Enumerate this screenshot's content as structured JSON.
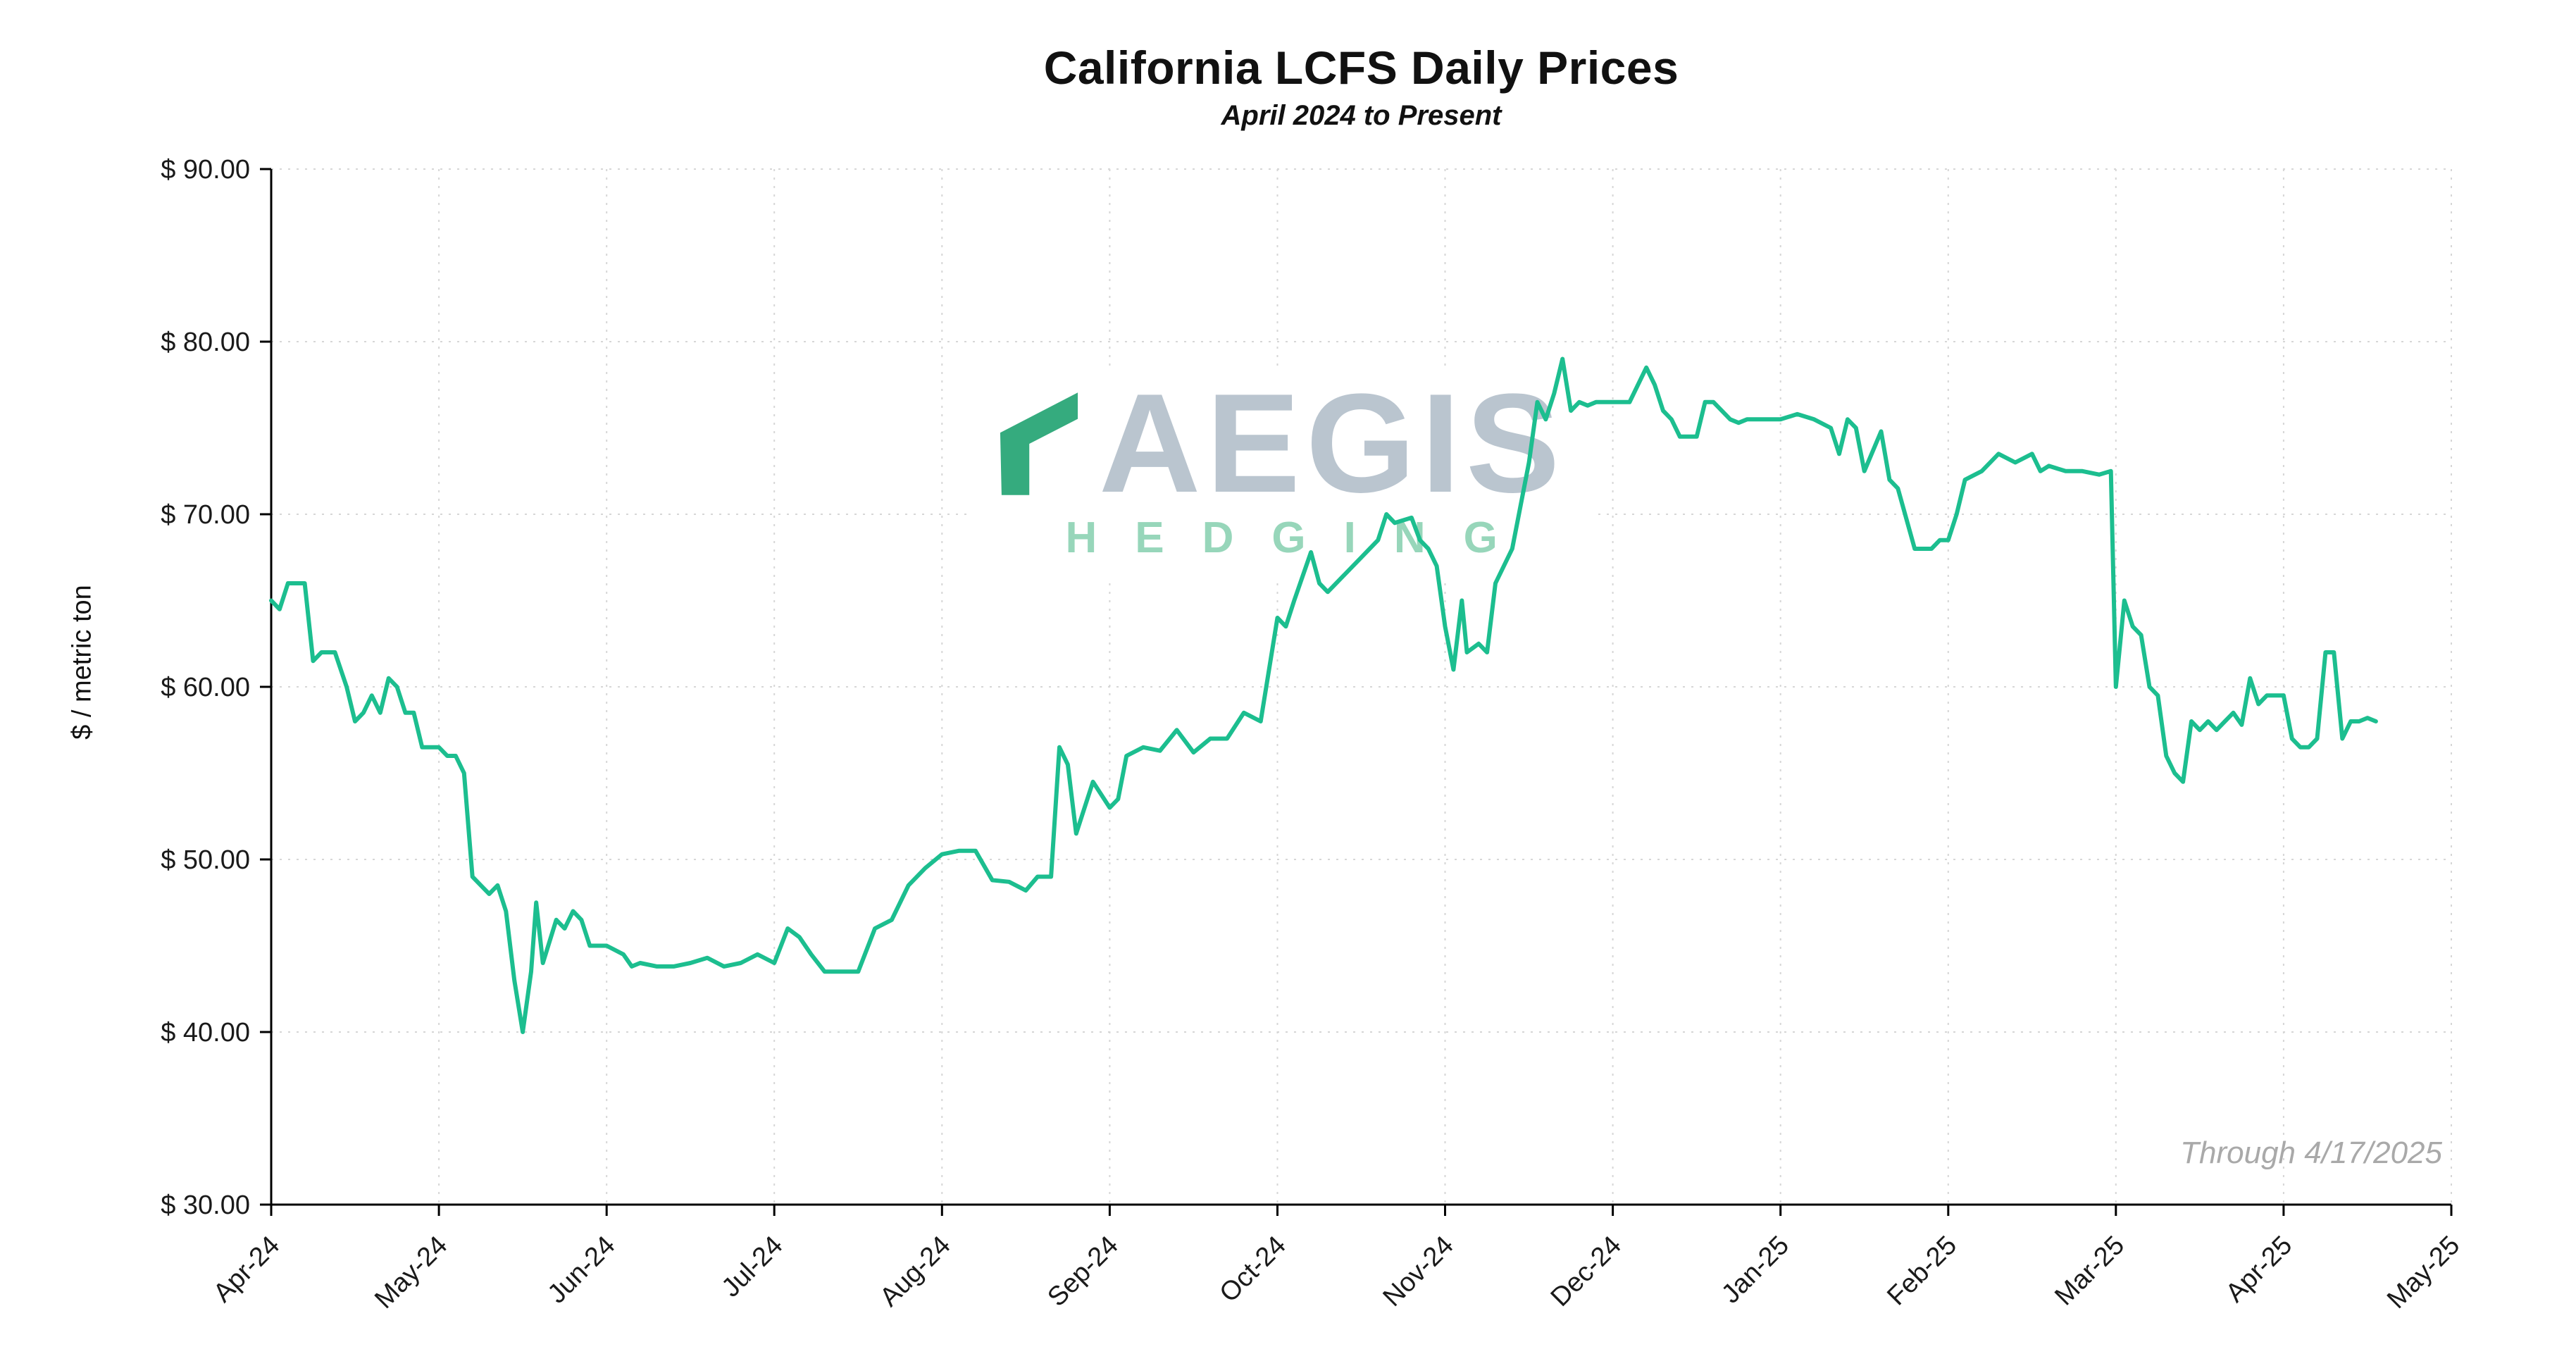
{
  "chart_data": {
    "type": "line",
    "title": "California LCFS Daily Prices",
    "subtitle": "April 2024 to Present",
    "xlabel": "",
    "ylabel": "$ / metric ton",
    "annotation": "Through 4/17/2025",
    "grid": true,
    "legend": "none",
    "line_color": "#1CBE8F",
    "grid_color": "#d6d6d6",
    "annotation_color": "#a9a9a9",
    "ylim": [
      30,
      90
    ],
    "xlim": [
      0,
      13
    ],
    "ytick_values": [
      30,
      40,
      50,
      60,
      70,
      80,
      90
    ],
    "ytick_labels": [
      "$ 30.00",
      "$ 40.00",
      "$ 50.00",
      "$ 60.00",
      "$ 70.00",
      "$ 80.00",
      "$ 90.00"
    ],
    "xtick_labels": [
      "Apr-24",
      "May-24",
      "Jun-24",
      "Jul-24",
      "Aug-24",
      "Sep-24",
      "Oct-24",
      "Nov-24",
      "Dec-24",
      "Jan-25",
      "Feb-25",
      "Mar-25",
      "Apr-25",
      "May-25"
    ],
    "x_units": "months from Apr-2024 tick (0 = Apr-24, 13 = May-25)",
    "series": [
      {
        "name": "California LCFS Daily Price ($/metric ton)",
        "x": [
          0.0,
          0.05,
          0.1,
          0.2,
          0.25,
          0.3,
          0.38,
          0.45,
          0.5,
          0.55,
          0.6,
          0.65,
          0.7,
          0.75,
          0.8,
          0.85,
          0.9,
          0.95,
          1.0,
          1.05,
          1.1,
          1.15,
          1.2,
          1.25,
          1.3,
          1.35,
          1.4,
          1.45,
          1.5,
          1.55,
          1.58,
          1.62,
          1.7,
          1.75,
          1.8,
          1.85,
          1.9,
          1.95,
          2.0,
          2.1,
          2.15,
          2.2,
          2.3,
          2.4,
          2.5,
          2.6,
          2.7,
          2.8,
          2.9,
          3.0,
          3.08,
          3.15,
          3.22,
          3.3,
          3.4,
          3.5,
          3.6,
          3.7,
          3.8,
          3.9,
          4.0,
          4.1,
          4.2,
          4.3,
          4.4,
          4.5,
          4.57,
          4.65,
          4.7,
          4.75,
          4.8,
          4.9,
          5.0,
          5.05,
          5.1,
          5.2,
          5.3,
          5.4,
          5.5,
          5.6,
          5.7,
          5.8,
          5.9,
          6.0,
          6.05,
          6.1,
          6.2,
          6.25,
          6.3,
          6.4,
          6.5,
          6.55,
          6.6,
          6.65,
          6.7,
          6.8,
          6.85,
          6.9,
          6.95,
          7.0,
          7.05,
          7.1,
          7.13,
          7.2,
          7.25,
          7.3,
          7.35,
          7.4,
          7.45,
          7.5,
          7.55,
          7.6,
          7.65,
          7.7,
          7.75,
          7.8,
          7.85,
          7.9,
          7.95,
          8.0,
          8.1,
          8.15,
          8.2,
          8.25,
          8.3,
          8.35,
          8.4,
          8.5,
          8.55,
          8.6,
          8.7,
          8.75,
          8.8,
          8.9,
          9.0,
          9.1,
          9.2,
          9.3,
          9.35,
          9.4,
          9.45,
          9.5,
          9.6,
          9.65,
          9.7,
          9.8,
          9.9,
          9.95,
          10.0,
          10.05,
          10.1,
          10.2,
          10.3,
          10.4,
          10.5,
          10.55,
          10.6,
          10.7,
          10.8,
          10.9,
          10.97,
          11.0,
          11.05,
          11.1,
          11.15,
          11.2,
          11.25,
          11.3,
          11.35,
          11.4,
          11.45,
          11.5,
          11.55,
          11.6,
          11.65,
          11.7,
          11.75,
          11.8,
          11.85,
          11.9,
          11.95,
          12.0,
          12.05,
          12.1,
          12.15,
          12.2,
          12.25,
          12.3,
          12.35,
          12.4,
          12.45,
          12.5,
          12.55
        ],
        "y": [
          65.0,
          64.5,
          66.0,
          66.0,
          61.5,
          62.0,
          62.0,
          60.0,
          58.0,
          58.5,
          59.5,
          58.5,
          60.5,
          60.0,
          58.5,
          58.5,
          56.5,
          56.5,
          56.5,
          56.0,
          56.0,
          55.0,
          49.0,
          48.5,
          48.0,
          48.5,
          47.0,
          43.0,
          40.0,
          43.5,
          47.5,
          44.0,
          46.5,
          46.0,
          47.0,
          46.5,
          45.0,
          45.0,
          45.0,
          44.5,
          43.8,
          44.0,
          43.8,
          43.8,
          44.0,
          44.3,
          43.8,
          44.0,
          44.5,
          44.0,
          46.0,
          45.5,
          44.5,
          43.5,
          43.5,
          43.5,
          46.0,
          46.5,
          48.5,
          49.5,
          50.3,
          50.5,
          50.5,
          48.8,
          48.7,
          48.2,
          49.0,
          49.0,
          56.5,
          55.5,
          51.5,
          54.5,
          53.0,
          53.5,
          56.0,
          56.5,
          56.3,
          57.5,
          56.2,
          57.0,
          57.0,
          58.5,
          58.0,
          64.0,
          63.5,
          65.0,
          67.8,
          66.0,
          65.5,
          66.5,
          67.5,
          68.0,
          68.5,
          70.0,
          69.5,
          69.8,
          68.5,
          68.0,
          67.0,
          63.5,
          61.0,
          65.0,
          62.0,
          62.5,
          62.0,
          66.0,
          67.0,
          68.0,
          70.5,
          73.0,
          76.5,
          75.5,
          77.0,
          79.0,
          76.0,
          76.5,
          76.3,
          76.5,
          76.5,
          76.5,
          76.5,
          77.5,
          78.5,
          77.5,
          76.0,
          75.5,
          74.5,
          74.5,
          76.5,
          76.5,
          75.5,
          75.3,
          75.5,
          75.5,
          75.5,
          75.8,
          75.5,
          75.0,
          73.5,
          75.5,
          75.0,
          72.5,
          74.8,
          72.0,
          71.5,
          68.0,
          68.0,
          68.5,
          68.5,
          70.0,
          72.0,
          72.5,
          73.5,
          73.0,
          73.5,
          72.5,
          72.8,
          72.5,
          72.5,
          72.3,
          72.5,
          60.0,
          65.0,
          63.5,
          63.0,
          60.0,
          59.5,
          56.0,
          55.0,
          54.5,
          58.0,
          57.5,
          58.0,
          57.5,
          58.0,
          58.5,
          57.8,
          60.5,
          59.0,
          59.5,
          59.5,
          59.5,
          57.0,
          56.5,
          56.5,
          57.0,
          62.0,
          62.0,
          57.0,
          58.0,
          58.0,
          58.2,
          58.0
        ]
      }
    ]
  },
  "watermark": {
    "brand": "AEGIS",
    "sub": "HEDGING",
    "brand_color": "#bac5cf",
    "sub_color": "#97d6ba",
    "logo_color": "#35ab7e"
  }
}
